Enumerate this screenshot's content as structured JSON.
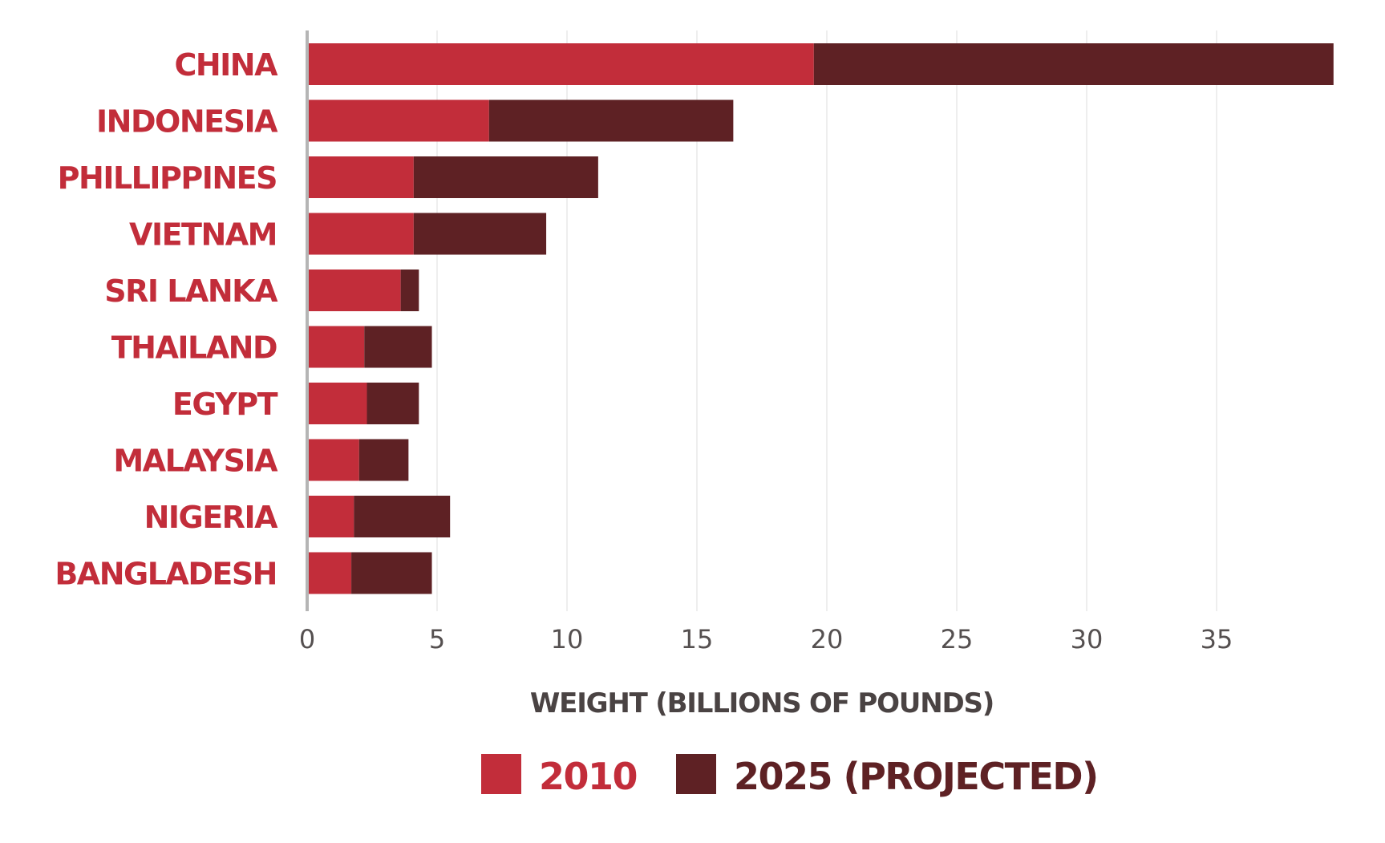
{
  "chart_data": {
    "type": "bar",
    "orientation": "horizontal",
    "stacked": true,
    "categories": [
      "CHINA",
      "INDONESIA",
      "PHILLIPPINES",
      "VIETNAM",
      "SRI LANKA",
      "THAILAND",
      "EGYPT",
      "MALAYSIA",
      "NIGERIA",
      "BANGLADESH"
    ],
    "series": [
      {
        "name": "2010",
        "color": "#c22d3a",
        "values": [
          19.5,
          7.0,
          4.1,
          4.1,
          3.6,
          2.2,
          2.3,
          2.0,
          1.8,
          1.7
        ]
      },
      {
        "name": "2025 (PROJECTED)",
        "color": "#5e2124",
        "values": [
          20.0,
          9.4,
          7.1,
          5.1,
          0.7,
          2.6,
          2.0,
          1.9,
          3.7,
          3.1
        ]
      }
    ],
    "xlabel": "WEIGHT (BILLIONS OF POUNDS)",
    "ylabel": "",
    "xlim": [
      0,
      40
    ],
    "xticks": [
      0,
      5,
      10,
      15,
      20,
      25,
      30,
      35
    ],
    "grid": true,
    "legend_position": "bottom",
    "colors": {
      "category_label": "#c22d3a",
      "axis": "#b5b5b5",
      "gridline": "#eeeeee",
      "tick_label": "#555050",
      "axis_title": "#4a4343",
      "legend_label_2010": "#c22d3a",
      "legend_label_2025": "#5e2124"
    }
  }
}
